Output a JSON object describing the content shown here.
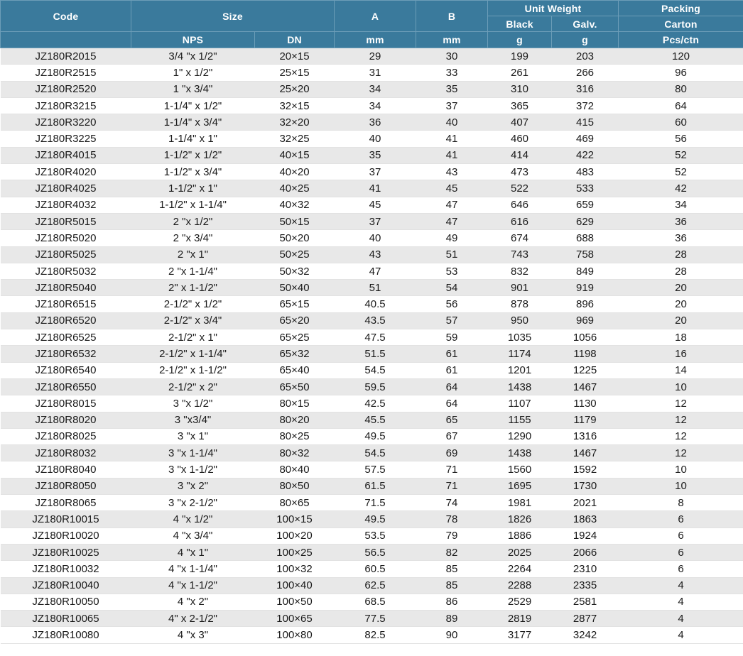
{
  "header": {
    "code": "Code",
    "size": "Size",
    "a": "A",
    "b": "B",
    "unit_weight": "Unit Weight",
    "packing": "Packing",
    "black": "Black",
    "galv": "Galv.",
    "carton": "Carton",
    "nps": "NPS",
    "dn": "DN",
    "a_unit": "mm",
    "b_unit": "mm",
    "black_unit": "g",
    "galv_unit": "g",
    "pack_unit": "Pcs/ctn"
  },
  "rows": [
    [
      "JZ180R2015",
      "3/4 \"x 1/2\"",
      "20×15",
      "29",
      "30",
      "199",
      "203",
      "120"
    ],
    [
      "JZ180R2515",
      "1\" x 1/2\"",
      "25×15",
      "31",
      "33",
      "261",
      "266",
      "96"
    ],
    [
      "JZ180R2520",
      "1 \"x 3/4\"",
      "25×20",
      "34",
      "35",
      "310",
      "316",
      "80"
    ],
    [
      "JZ180R3215",
      "1-1/4\" x 1/2\"",
      "32×15",
      "34",
      "37",
      "365",
      "372",
      "64"
    ],
    [
      "JZ180R3220",
      "1-1/4\" x 3/4\"",
      "32×20",
      "36",
      "40",
      "407",
      "415",
      "60"
    ],
    [
      "JZ180R3225",
      "1-1/4\" x 1\"",
      "32×25",
      "40",
      "41",
      "460",
      "469",
      "56"
    ],
    [
      "JZ180R4015",
      "1-1/2\" x 1/2\"",
      "40×15",
      "35",
      "41",
      "414",
      "422",
      "52"
    ],
    [
      "JZ180R4020",
      "1-1/2\" x 3/4\"",
      "40×20",
      "37",
      "43",
      "473",
      "483",
      "52"
    ],
    [
      "JZ180R4025",
      "1-1/2\" x 1\"",
      "40×25",
      "41",
      "45",
      "522",
      "533",
      "42"
    ],
    [
      "JZ180R4032",
      "1-1/2\" x 1-1/4\"",
      "40×32",
      "45",
      "47",
      "646",
      "659",
      "34"
    ],
    [
      "JZ180R5015",
      "2 \"x 1/2\"",
      "50×15",
      "37",
      "47",
      "616",
      "629",
      "36"
    ],
    [
      "JZ180R5020",
      "2 \"x 3/4\"",
      "50×20",
      "40",
      "49",
      "674",
      "688",
      "36"
    ],
    [
      "JZ180R5025",
      "2 \"x 1\"",
      "50×25",
      "43",
      "51",
      "743",
      "758",
      "28"
    ],
    [
      "JZ180R5032",
      "2 \"x 1-1/4\"",
      "50×32",
      "47",
      "53",
      "832",
      "849",
      "28"
    ],
    [
      "JZ180R5040",
      "2\" x 1-1/2\"",
      "50×40",
      "51",
      "54",
      "901",
      "919",
      "20"
    ],
    [
      "JZ180R6515",
      "2-1/2\" x 1/2\"",
      "65×15",
      "40.5",
      "56",
      "878",
      "896",
      "20"
    ],
    [
      "JZ180R6520",
      "2-1/2\" x 3/4\"",
      "65×20",
      "43.5",
      "57",
      "950",
      "969",
      "20"
    ],
    [
      "JZ180R6525",
      "2-1/2\" x 1\"",
      "65×25",
      "47.5",
      "59",
      "1035",
      "1056",
      "18"
    ],
    [
      "JZ180R6532",
      "2-1/2\" x 1-1/4\"",
      "65×32",
      "51.5",
      "61",
      "1174",
      "1198",
      "16"
    ],
    [
      "JZ180R6540",
      "2-1/2\" x 1-1/2\"",
      "65×40",
      "54.5",
      "61",
      "1201",
      "1225",
      "14"
    ],
    [
      "JZ180R6550",
      "2-1/2\" x 2\"",
      "65×50",
      "59.5",
      "64",
      "1438",
      "1467",
      "10"
    ],
    [
      "JZ180R8015",
      "3 \"x 1/2\"",
      "80×15",
      "42.5",
      "64",
      "1107",
      "1130",
      "12"
    ],
    [
      "JZ180R8020",
      "3 \"x3/4\"",
      "80×20",
      "45.5",
      "65",
      "1155",
      "1179",
      "12"
    ],
    [
      "JZ180R8025",
      "3 \"x 1\"",
      "80×25",
      "49.5",
      "67",
      "1290",
      "1316",
      "12"
    ],
    [
      "JZ180R8032",
      "3 \"x 1-1/4\"",
      "80×32",
      "54.5",
      "69",
      "1438",
      "1467",
      "12"
    ],
    [
      "JZ180R8040",
      "3 \"x 1-1/2\"",
      "80×40",
      "57.5",
      "71",
      "1560",
      "1592",
      "10"
    ],
    [
      "JZ180R8050",
      "3 \"x 2\"",
      "80×50",
      "61.5",
      "71",
      "1695",
      "1730",
      "10"
    ],
    [
      "JZ180R8065",
      "3 \"x 2-1/2\"",
      "80×65",
      "71.5",
      "74",
      "1981",
      "2021",
      "8"
    ],
    [
      "JZ180R10015",
      "4 \"x 1/2\"",
      "100×15",
      "49.5",
      "78",
      "1826",
      "1863",
      "6"
    ],
    [
      "JZ180R10020",
      "4 \"x 3/4\"",
      "100×20",
      "53.5",
      "79",
      "1886",
      "1924",
      "6"
    ],
    [
      "JZ180R10025",
      "4 \"x 1\"",
      "100×25",
      "56.5",
      "82",
      "2025",
      "2066",
      "6"
    ],
    [
      "JZ180R10032",
      "4 \"x 1-1/4\"",
      "100×32",
      "60.5",
      "85",
      "2264",
      "2310",
      "6"
    ],
    [
      "JZ180R10040",
      "4 \"x 1-1/2\"",
      "100×40",
      "62.5",
      "85",
      "2288",
      "2335",
      "4"
    ],
    [
      "JZ180R10050",
      "4 \"x 2\"",
      "100×50",
      "68.5",
      "86",
      "2529",
      "2581",
      "4"
    ],
    [
      "JZ180R10065",
      "4\" x 2-1/2\"",
      "100×65",
      "77.5",
      "89",
      "2819",
      "2877",
      "4"
    ],
    [
      "JZ180R10080",
      "4 \"x 3\"",
      "100×80",
      "82.5",
      "90",
      "3177",
      "3242",
      "4"
    ]
  ]
}
